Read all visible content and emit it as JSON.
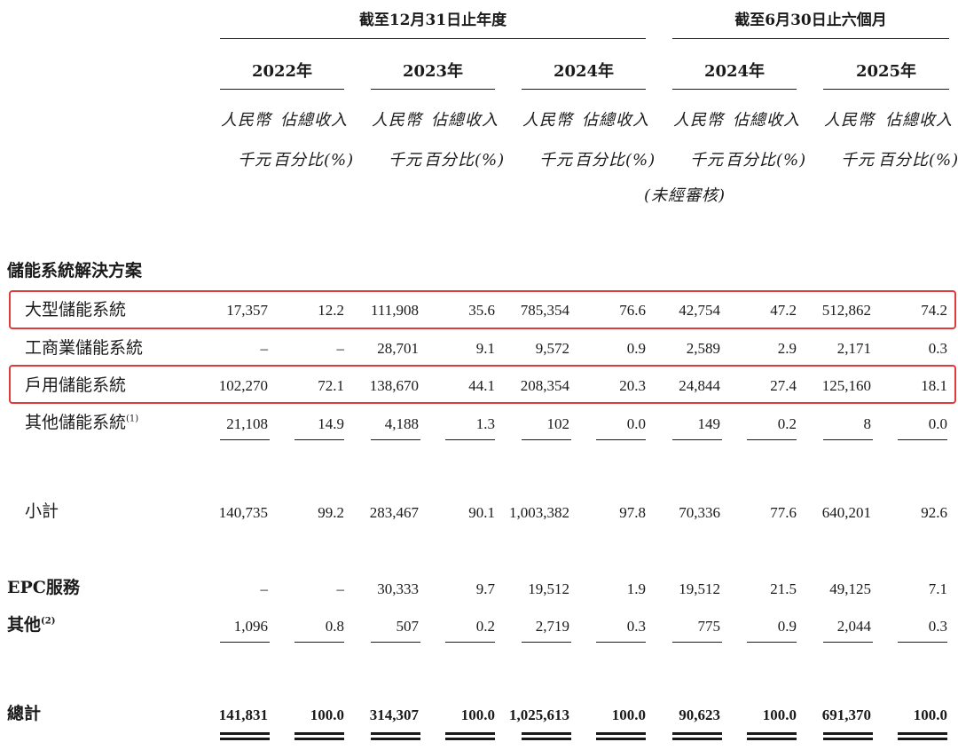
{
  "header": {
    "group_fy": "截至12月31日止年度",
    "group_6m": "截至6月30日止六個月",
    "years": [
      "2022年",
      "2023年",
      "2024年",
      "2024年",
      "2025年"
    ],
    "col_rmb_1": "人民幣",
    "col_rmb_2": "千元",
    "col_pct_1": "佔總收入",
    "col_pct_2": "百分比(%)",
    "unaudited": "(未經審核)"
  },
  "sections": {
    "ess": "儲能系統解決方案",
    "epc": "EPC服務",
    "other": "其他",
    "other_note": "(2)",
    "total": "總計"
  },
  "rows": [
    {
      "label": "大型儲能系統",
      "note": "",
      "highlight": true,
      "values": [
        "17,357",
        "12.2",
        "111,908",
        "35.6",
        "785,354",
        "76.6",
        "42,754",
        "47.2",
        "512,862",
        "74.2"
      ]
    },
    {
      "label": "工商業儲能系統",
      "note": "",
      "highlight": false,
      "values": [
        "–",
        "–",
        "28,701",
        "9.1",
        "9,572",
        "0.9",
        "2,589",
        "2.9",
        "2,171",
        "0.3"
      ]
    },
    {
      "label": "戶用儲能系統",
      "note": "",
      "highlight": true,
      "values": [
        "102,270",
        "72.1",
        "138,670",
        "44.1",
        "208,354",
        "20.3",
        "24,844",
        "27.4",
        "125,160",
        "18.1"
      ]
    },
    {
      "label": "其他儲能系統",
      "note": "(1)",
      "highlight": false,
      "values": [
        "21,108",
        "14.9",
        "4,188",
        "1.3",
        "102",
        "0.0",
        "149",
        "0.2",
        "8",
        "0.0"
      ]
    },
    {
      "label": "小計",
      "note": "",
      "highlight": false,
      "values": [
        "140,735",
        "99.2",
        "283,467",
        "90.1",
        "1,003,382",
        "97.8",
        "70,336",
        "77.6",
        "640,201",
        "92.6"
      ]
    }
  ],
  "epc_values": [
    "–",
    "–",
    "30,333",
    "9.7",
    "19,512",
    "1.9",
    "19,512",
    "21.5",
    "49,125",
    "7.1"
  ],
  "other_values": [
    "1,096",
    "0.8",
    "507",
    "0.2",
    "2,719",
    "0.3",
    "775",
    "0.9",
    "2,044",
    "0.3"
  ],
  "total_values": [
    "141,831",
    "100.0",
    "314,307",
    "100.0",
    "1,025,613",
    "100.0",
    "90,623",
    "100.0",
    "691,370",
    "100.0"
  ]
}
